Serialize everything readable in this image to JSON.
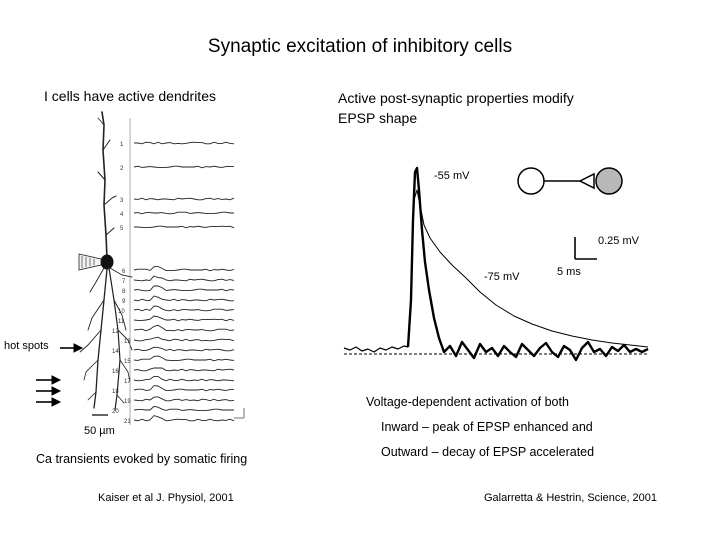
{
  "title": "Synaptic excitation of inhibitory cells",
  "left_panel": {
    "heading": "I cells have active dendrites",
    "hot_spots_label": "hot spots",
    "scale_bar_label": "50 µm",
    "caption": "Ca transients evoked by somatic firing",
    "citation": "Kaiser et al J. Physiol, 2001",
    "trace_numbers": [
      "1",
      "2",
      "3",
      "4",
      "5",
      "6",
      "7",
      "8",
      "9",
      "10",
      "11",
      "12",
      "13",
      "14",
      "15",
      "16",
      "17",
      "18",
      "19",
      "20",
      "21"
    ]
  },
  "right_panel": {
    "heading_line1": "Active post-synaptic properties modify",
    "heading_line2": "EPSP shape",
    "label_minus55": "-55 mV",
    "label_minus75": "-75 mV",
    "scale_voltage": "0.25 mV",
    "scale_time": "5 ms",
    "explanation_line1": "Voltage-dependent activation of both",
    "explanation_line2": "Inward – peak of EPSP enhanced and",
    "explanation_line3": "Outward – decay of EPSP accelerated",
    "citation": "Galarretta & Hestrin, Science, 2001"
  }
}
